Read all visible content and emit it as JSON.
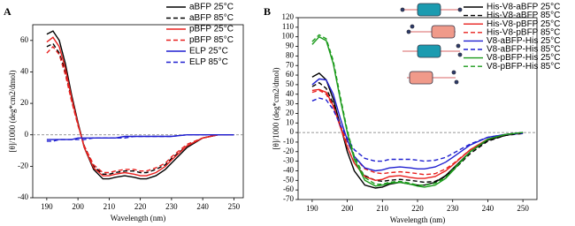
{
  "chart_data": [
    {
      "type": "line",
      "panel_label": "A",
      "ylabel": "[θ]/1000 (deg*cm2/dmol)",
      "xlabel": "Wavelength (nm)",
      "x": [
        190,
        192,
        194,
        196,
        198,
        200,
        202,
        205,
        208,
        210,
        212,
        215,
        218,
        220,
        222,
        225,
        228,
        230,
        235,
        240,
        245,
        250
      ],
      "xlim": [
        185.5,
        253
      ],
      "ylim": [
        -40,
        70
      ],
      "xticks": [
        190,
        200,
        210,
        220,
        230,
        240,
        250
      ],
      "yticks": [
        -40,
        -20,
        0,
        20,
        40,
        60
      ],
      "series": [
        {
          "name": "aBFP 25°C",
          "color": "#000000",
          "dashed": false,
          "values": [
            64,
            66,
            60,
            45,
            25,
            8,
            -8,
            -22,
            -28,
            -28,
            -27,
            -26,
            -27,
            -28,
            -28,
            -26,
            -22,
            -18,
            -8,
            -2,
            0,
            0
          ]
        },
        {
          "name": "aBFP 85°C",
          "color": "#000000",
          "dashed": true,
          "values": [
            56,
            58,
            52,
            40,
            22,
            7,
            -7,
            -20,
            -25,
            -25,
            -24,
            -23,
            -23,
            -24,
            -24,
            -22,
            -19,
            -15,
            -7,
            -2,
            0,
            0
          ]
        },
        {
          "name": "pBFP 25°C",
          "color": "#e8201e",
          "dashed": false,
          "values": [
            59,
            62,
            56,
            42,
            23,
            7,
            -8,
            -21,
            -26,
            -26,
            -25,
            -24,
            -25,
            -26,
            -26,
            -24,
            -20,
            -16,
            -7,
            -2,
            0,
            0
          ]
        },
        {
          "name": "pBFP 85°C",
          "color": "#e8201e",
          "dashed": true,
          "values": [
            52,
            56,
            51,
            38,
            21,
            6,
            -7,
            -19,
            -24,
            -24,
            -23,
            -22,
            -22,
            -23,
            -23,
            -21,
            -18,
            -14,
            -6,
            -2,
            0,
            0
          ]
        },
        {
          "name": "ELP 25°C",
          "color": "#1f1fd0",
          "dashed": false,
          "values": [
            -3,
            -3,
            -3,
            -3,
            -3,
            -2,
            -2,
            -2,
            -2,
            -2,
            -2,
            -1,
            -1,
            -1,
            -1,
            -1,
            -1,
            -1,
            0,
            0,
            0,
            0
          ]
        },
        {
          "name": "ELP 85°C",
          "color": "#1f1fd0",
          "dashed": true,
          "values": [
            -4,
            -4,
            -3,
            -3,
            -3,
            -3,
            -3,
            -2,
            -2,
            -2,
            -2,
            -2,
            -1,
            -1,
            -1,
            -1,
            -1,
            -1,
            0,
            0,
            0,
            0
          ]
        }
      ]
    },
    {
      "type": "line",
      "panel_label": "B",
      "ylabel": "[θ]/1000 (deg*cm2/dmol)",
      "xlabel": "Wavelength (nm)",
      "x": [
        190,
        192,
        194,
        196,
        198,
        200,
        202,
        205,
        208,
        210,
        212,
        215,
        218,
        220,
        222,
        225,
        228,
        230,
        235,
        240,
        245,
        250
      ],
      "xlim": [
        186,
        254
      ],
      "ylim": [
        -70,
        120
      ],
      "xticks": [
        190,
        200,
        210,
        220,
        230,
        240,
        250
      ],
      "yticks": [
        -70,
        -60,
        -50,
        -40,
        -30,
        -20,
        -10,
        0,
        10,
        20,
        30,
        40,
        50,
        60,
        70,
        80,
        90,
        100,
        110,
        120
      ],
      "series": [
        {
          "name": "His-V8-aBFP 25°C",
          "color": "#000000",
          "dashed": false,
          "values": [
            58,
            62,
            55,
            35,
            8,
            -20,
            -40,
            -55,
            -58,
            -57,
            -54,
            -52,
            -54,
            -55,
            -55,
            -52,
            -45,
            -38,
            -20,
            -8,
            -3,
            0
          ]
        },
        {
          "name": "His-V8-aBFP 85°C",
          "color": "#000000",
          "dashed": true,
          "values": [
            48,
            52,
            46,
            30,
            8,
            -15,
            -32,
            -45,
            -50,
            -51,
            -50,
            -49,
            -50,
            -51,
            -52,
            -51,
            -46,
            -40,
            -22,
            -9,
            -3,
            -1
          ]
        },
        {
          "name": "His-V8-pBFP 25°C",
          "color": "#e8201e",
          "dashed": false,
          "values": [
            44,
            45,
            42,
            28,
            6,
            -15,
            -32,
            -46,
            -50,
            -49,
            -46,
            -45,
            -47,
            -48,
            -48,
            -46,
            -40,
            -34,
            -18,
            -7,
            -2,
            0
          ]
        },
        {
          "name": "His-V8-pBFP 85°C",
          "color": "#e8201e",
          "dashed": true,
          "values": [
            42,
            44,
            40,
            27,
            8,
            -10,
            -25,
            -38,
            -42,
            -43,
            -42,
            -41,
            -42,
            -43,
            -44,
            -43,
            -38,
            -33,
            -18,
            -7,
            -2,
            -1
          ]
        },
        {
          "name": "V8-aBFP-His 25°C",
          "color": "#1f1fd0",
          "dashed": false,
          "values": [
            50,
            56,
            55,
            40,
            15,
            -8,
            -25,
            -37,
            -40,
            -39,
            -37,
            -36,
            -37,
            -38,
            -38,
            -36,
            -31,
            -26,
            -13,
            -5,
            -2,
            0
          ]
        },
        {
          "name": "V8-aBFP-His 85°C",
          "color": "#1f1fd0",
          "dashed": true,
          "values": [
            33,
            36,
            34,
            24,
            8,
            -6,
            -18,
            -27,
            -30,
            -30,
            -28,
            -28,
            -28,
            -29,
            -30,
            -29,
            -26,
            -22,
            -12,
            -5,
            -2,
            -1
          ]
        },
        {
          "name": "V8-pBFP-His 25°C",
          "color": "#1a9a1a",
          "dashed": false,
          "values": [
            92,
            100,
            96,
            72,
            35,
            0,
            -28,
            -50,
            -56,
            -55,
            -53,
            -52,
            -54,
            -56,
            -57,
            -55,
            -48,
            -40,
            -20,
            -7,
            -2,
            0
          ]
        },
        {
          "name": "V8-pBFP-His 85°C",
          "color": "#1a9a1a",
          "dashed": true,
          "values": [
            95,
            102,
            98,
            75,
            38,
            2,
            -25,
            -47,
            -54,
            -54,
            -52,
            -51,
            -53,
            -55,
            -55,
            -53,
            -47,
            -39,
            -20,
            -7,
            -2,
            0
          ]
        }
      ]
    }
  ]
}
